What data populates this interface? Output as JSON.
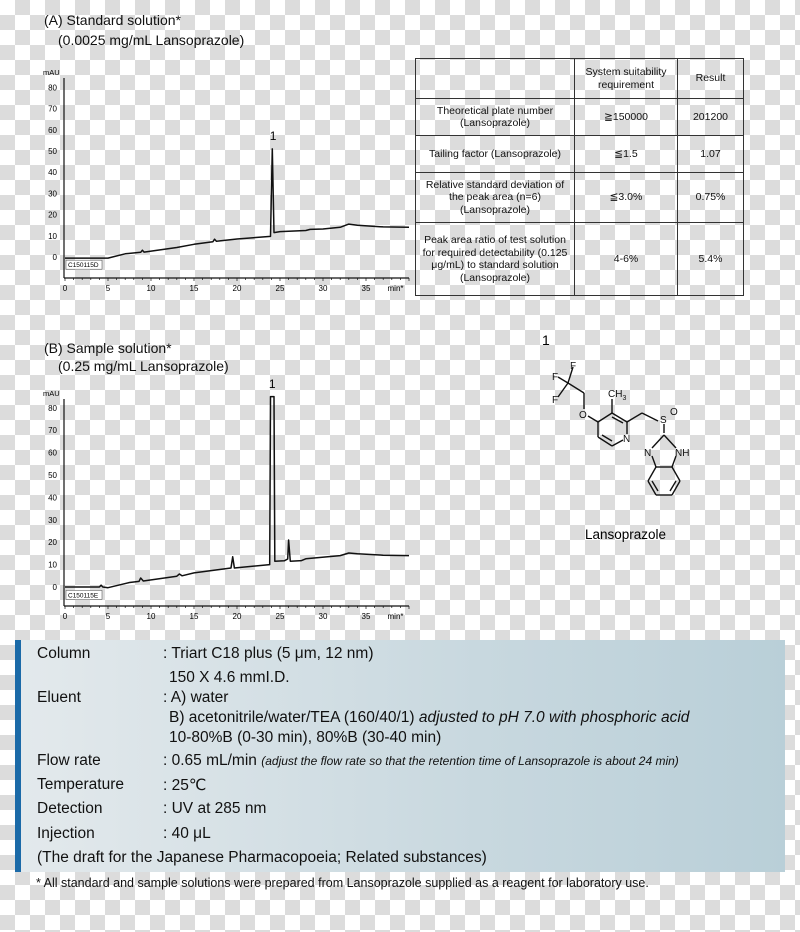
{
  "panel_a": {
    "title": "(A) Standard solution*",
    "subtitle": "(0.0025 mg/mL Lansoprazole)"
  },
  "panel_b": {
    "title": "(B) Sample solution*",
    "subtitle": "(0.25 mg/mL Lansoprazole)"
  },
  "chart_data": [
    {
      "type": "line",
      "ylabel": "mAU",
      "xlabel": "min*",
      "xlim": [
        0,
        40
      ],
      "ylim": [
        -10,
        80
      ],
      "x_ticks": [
        "0",
        "5",
        "10",
        "15",
        "20",
        "25",
        "30",
        "35"
      ],
      "y_ticks": [
        "80",
        "70",
        "60",
        "50",
        "40",
        "30",
        "20",
        "10",
        "0"
      ],
      "sample_id": "C150115D",
      "peak_label": "1",
      "peak_time": 24.2,
      "series": [
        {
          "points": [
            [
              0,
              -0.5
            ],
            [
              5,
              -0.5
            ],
            [
              7,
              1.5
            ],
            [
              8.8,
              2.2
            ],
            [
              9,
              3.2
            ],
            [
              9.2,
              2.3
            ],
            [
              13,
              4.5
            ],
            [
              15,
              6
            ],
            [
              17.2,
              7.2
            ],
            [
              17.4,
              8.4
            ],
            [
              17.6,
              7.4
            ],
            [
              20,
              8.5
            ],
            [
              23.9,
              9.7
            ],
            [
              24.1,
              51
            ],
            [
              24.3,
              11.5
            ],
            [
              25,
              12
            ],
            [
              28,
              12.5
            ],
            [
              28.5,
              13
            ],
            [
              30,
              13.2
            ],
            [
              32,
              14
            ],
            [
              33,
              15.5
            ],
            [
              34,
              15
            ],
            [
              37,
              14.2
            ],
            [
              40,
              14
            ]
          ]
        }
      ]
    },
    {
      "type": "line",
      "ylabel": "mAU",
      "xlabel": "min*",
      "xlim": [
        0,
        40
      ],
      "ylim": [
        -10,
        85
      ],
      "x_ticks": [
        "0",
        "5",
        "10",
        "15",
        "20",
        "25",
        "30",
        "35"
      ],
      "y_ticks": [
        "80",
        "70",
        "60",
        "50",
        "40",
        "30",
        "20",
        "10",
        "0"
      ],
      "sample_id": "C150115E",
      "peak_label": "1",
      "peak_time": 24.1,
      "series": [
        {
          "points": [
            [
              0,
              0
            ],
            [
              4,
              0
            ],
            [
              4.2,
              0.8
            ],
            [
              4.4,
              0
            ],
            [
              5,
              -0.3
            ],
            [
              7.5,
              2
            ],
            [
              8.6,
              2.5
            ],
            [
              8.8,
              4
            ],
            [
              9.1,
              2.7
            ],
            [
              13,
              4.8
            ],
            [
              13.3,
              5.8
            ],
            [
              13.6,
              5
            ],
            [
              15,
              6.3
            ],
            [
              19.3,
              8.5
            ],
            [
              19.5,
              13.5
            ],
            [
              19.7,
              8.5
            ],
            [
              23.8,
              10
            ],
            [
              23.9,
              85
            ],
            [
              24.3,
              85
            ],
            [
              24.4,
              11.5
            ],
            [
              25.5,
              11.7
            ],
            [
              25.9,
              12.5
            ],
            [
              26,
              21
            ],
            [
              26.2,
              11.5
            ],
            [
              27.5,
              11.8
            ],
            [
              28,
              12.6
            ],
            [
              32,
              14
            ],
            [
              33,
              15.2
            ],
            [
              34,
              14.8
            ],
            [
              37,
              14.2
            ],
            [
              40,
              14
            ]
          ]
        }
      ]
    }
  ],
  "suitability_table": {
    "headers": [
      "",
      "System suitability requirement",
      "Result"
    ],
    "rows": [
      [
        "Theoretical plate number (Lansoprazole)",
        "≧150000",
        "201200"
      ],
      [
        "Tailing factor (Lansoprazole)",
        "≦1.5",
        "1.07"
      ],
      [
        "Relative standard deviation of the peak area (n=6) (Lansoprazole)",
        "≦3.0%",
        "0.75%"
      ],
      [
        "Peak area ratio of test solution for required detectability (0.125 μg/mL) to standard solution (Lansoprazole)",
        "4-6%",
        "5.4%"
      ]
    ]
  },
  "structure": {
    "number": "1",
    "name": "Lansoprazole",
    "atoms": {
      "f": "F",
      "o": "O",
      "ch3": "CH",
      "ch3_sub": "3",
      "n": "N",
      "s": "S",
      "o2": "O",
      "nh": "NH"
    }
  },
  "conditions": {
    "column_label": "Column",
    "column_value": ": Triart C18 plus (5 μm, 12 nm)",
    "column_value2": "150 X 4.6 mmI.D.",
    "eluent_label": "Eluent",
    "eluent_a": ": A) water",
    "eluent_b": "B) acetonitrile/water/TEA (160/40/1)",
    "eluent_b_note": "adjusted to pH 7.0 with phosphoric acid",
    "eluent_gradient": "10-80%B (0-30 min), 80%B (30-40 min)",
    "flow_label": "Flow rate",
    "flow_value": ": 0.65 mL/min",
    "flow_note": "(adjust the flow rate so that the retention time of Lansoprazole is about 24 min)",
    "temp_label": "Temperature",
    "temp_value": ": 25℃",
    "detection_label": "Detection",
    "detection_value": ": UV at 285 nm",
    "injection_label": "Injection",
    "injection_value": ": 40 μL",
    "source_note": "(The draft for the Japanese Pharmacopoeia; Related substances)",
    "accent_color": "#1b6aa8"
  },
  "footnote": "* All standard and sample solutions were prepared from Lansoprazole supplied as a reagent for laboratory use."
}
